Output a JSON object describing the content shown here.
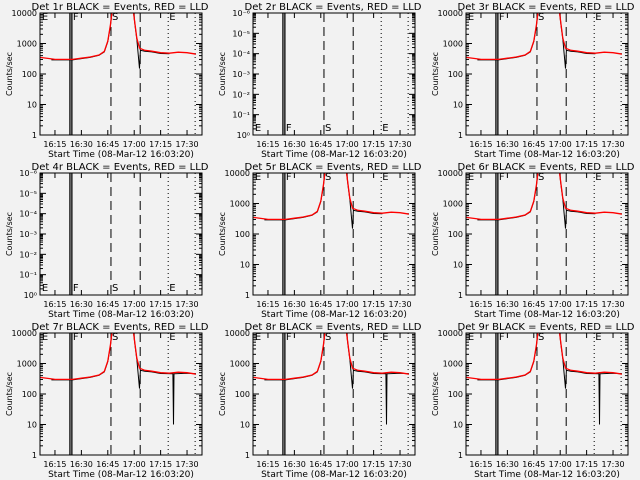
{
  "chart_data": {
    "type": "line",
    "xlabel": "Start Time (08-Mar-12 16:03:20)",
    "ylabel": "Counts/sec",
    "xlim_minutes_after_1600": [
      6.5,
      98.5
    ],
    "x_ticks": [
      {
        "m": 15,
        "label": "16:15"
      },
      {
        "m": 30,
        "label": "16:30"
      },
      {
        "m": 45,
        "label": "16:45"
      },
      {
        "m": 60,
        "label": "17:00"
      },
      {
        "m": 75,
        "label": "17:15"
      },
      {
        "m": 90,
        "label": "17:30"
      }
    ],
    "y_ticks_counts": [
      "1",
      "10",
      "100",
      "1000",
      "10000"
    ],
    "y_ticks_empty": [
      "10⁰",
      "10⁻¹",
      "10⁻²",
      "10⁻³",
      "10⁻⁴",
      "10⁻⁵",
      "10⁻⁶"
    ],
    "ylim": [
      1,
      10000
    ],
    "legend": "in title: BLACK = Events, RED = LLD",
    "vlines": [
      {
        "m": 23.5,
        "style": "solid"
      },
      {
        "m": 24.6,
        "style": "solid"
      },
      {
        "m": 46.8,
        "style": "dashed"
      },
      {
        "m": 63.4,
        "style": "dashed"
      },
      {
        "m": 79.3,
        "style": "dotted"
      },
      {
        "m": 94.6,
        "style": "dotted"
      }
    ],
    "markers": [
      {
        "m": 7,
        "label": "E"
      },
      {
        "m": 24.6,
        "label": "F"
      },
      {
        "m": 46.8,
        "label": "S"
      },
      {
        "m": 79.3,
        "label": "E"
      }
    ],
    "curves": {
      "red": [
        [
          6.5,
          350
        ],
        [
          12,
          320
        ],
        [
          15,
          300
        ],
        [
          25,
          300
        ],
        [
          30,
          330
        ],
        [
          35,
          360
        ],
        [
          40,
          420
        ],
        [
          43,
          550
        ],
        [
          45,
          1200
        ],
        [
          46.5,
          4000
        ],
        [
          47.5,
          12000
        ],
        [
          59.5,
          12000
        ],
        [
          60.5,
          4000
        ],
        [
          61.5,
          1500
        ],
        [
          63,
          700
        ],
        [
          66,
          600
        ],
        [
          70,
          560
        ],
        [
          75,
          500
        ],
        [
          80,
          480
        ],
        [
          85,
          520
        ],
        [
          90,
          500
        ],
        [
          94,
          460
        ],
        [
          95,
          440
        ]
      ],
      "black": [
        [
          13,
          290
        ],
        [
          25,
          290
        ],
        [
          30,
          320
        ],
        [
          35,
          350
        ],
        [
          40,
          410
        ],
        [
          43,
          530
        ],
        [
          45,
          1150
        ],
        [
          46.5,
          3800
        ],
        [
          47.5,
          12000
        ],
        [
          59.5,
          12000
        ],
        [
          60.5,
          3800
        ],
        [
          61.5,
          1400
        ],
        [
          63,
          150
        ],
        [
          63.5,
          600
        ],
        [
          66,
          560
        ],
        [
          70,
          530
        ],
        [
          75,
          470
        ],
        [
          80,
          460
        ]
      ],
      "black_dip": [
        [
          13,
          290
        ],
        [
          25,
          290
        ],
        [
          30,
          320
        ],
        [
          35,
          350
        ],
        [
          40,
          410
        ],
        [
          43,
          530
        ],
        [
          45,
          1150
        ],
        [
          46.5,
          3800
        ],
        [
          47.5,
          12000
        ],
        [
          59.5,
          12000
        ],
        [
          60.5,
          3800
        ],
        [
          61.5,
          1400
        ],
        [
          63,
          150
        ],
        [
          63.5,
          600
        ],
        [
          66,
          560
        ],
        [
          70,
          530
        ],
        [
          75,
          470
        ],
        [
          82,
          460
        ],
        [
          82.3,
          10
        ],
        [
          82.6,
          460
        ],
        [
          90,
          480
        ],
        [
          95,
          460
        ]
      ]
    },
    "panels": [
      {
        "title": "Det 1r BLACK = Events, RED = LLD",
        "empty": false,
        "black": "black"
      },
      {
        "title": "Det 2r BLACK = Events, RED = LLD",
        "empty": true
      },
      {
        "title": "Det 3r BLACK = Events, RED = LLD",
        "empty": false,
        "black": "black"
      },
      {
        "title": "Det 4r BLACK = Events, RED = LLD",
        "empty": true
      },
      {
        "title": "Det 5r BLACK = Events, RED = LLD",
        "empty": false,
        "black": "black"
      },
      {
        "title": "Det 6r BLACK = Events, RED = LLD",
        "empty": false,
        "black": "black"
      },
      {
        "title": "Det 7r BLACK = Events, RED = LLD",
        "empty": false,
        "black": "black_dip"
      },
      {
        "title": "Det 8r BLACK = Events, RED = LLD",
        "empty": false,
        "black": "black_dip"
      },
      {
        "title": "Det 9r BLACK = Events, RED = LLD",
        "empty": false,
        "black": "black_dip"
      }
    ],
    "colors": {
      "events": "#000000",
      "lld": "#ff0000",
      "background": "#f2f2f2"
    }
  }
}
